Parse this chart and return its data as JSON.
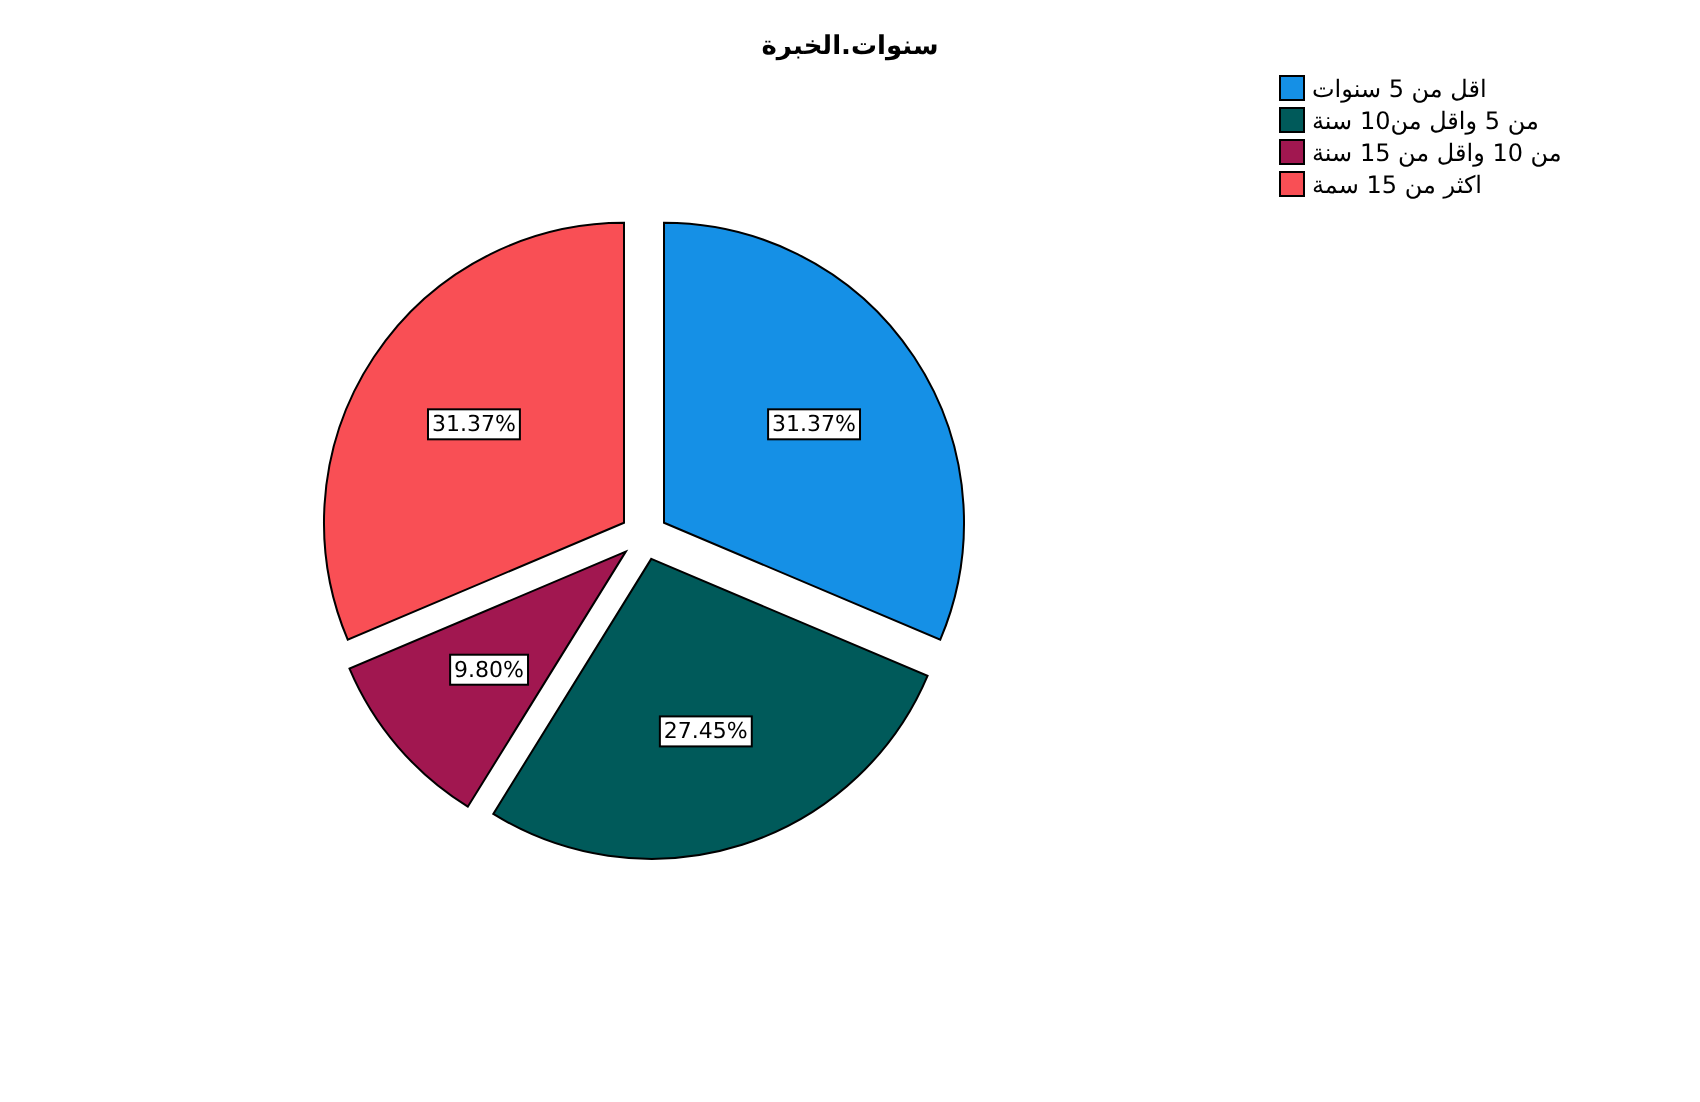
{
  "chart_data": {
    "type": "pie",
    "title": "سنوات.الخبرة",
    "categories": [
      "اقل من 5 سنوات",
      "من 5 واقل من10 سنة",
      "من 10 واقل من 15 سنة",
      "اكثر من 15 سمة"
    ],
    "values": [
      31.37,
      27.45,
      9.8,
      31.37
    ],
    "colors": [
      "#1590e6",
      "#005a5a",
      "#a11750",
      "#f94f55"
    ],
    "value_labels": [
      "31.37%",
      "27.45%",
      "9.80%",
      "31.37%"
    ],
    "legend": "top right"
  }
}
